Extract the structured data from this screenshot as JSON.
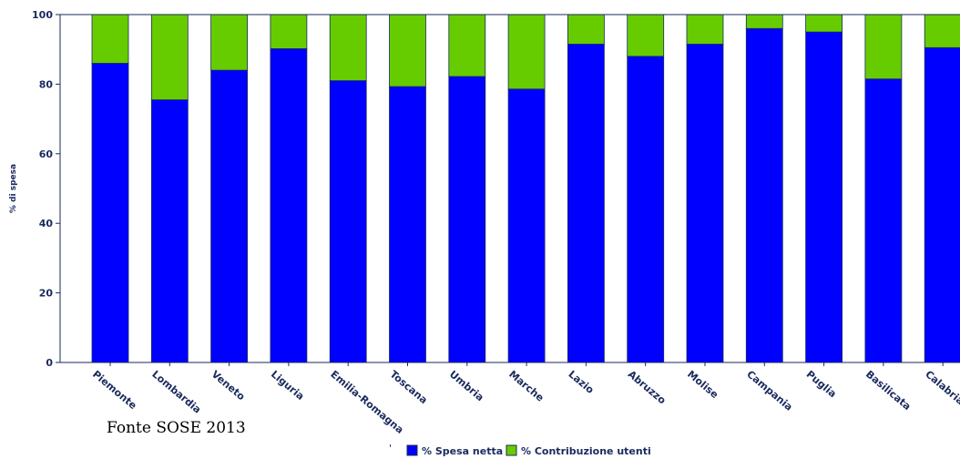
{
  "source_note": "Fonte SOSE 2013",
  "colors": {
    "spesa_netta": "#0000ff",
    "contribuzione_utenti": "#66cc00",
    "axis": "#1a2a5e"
  },
  "chart_data": {
    "type": "bar",
    "stacked": true,
    "categories": [
      "Piemonte",
      "Lombardia",
      "Veneto",
      "Liguria",
      "Emilia-Romagna",
      "Toscana",
      "Umbria",
      "Marche",
      "Lazio",
      "Abruzzo",
      "Molise",
      "Campania",
      "Puglia",
      "Basilicata",
      "Calabria"
    ],
    "series": [
      {
        "name": "% Spesa netta",
        "values": [
          86,
          75.5,
          84,
          90.2,
          81,
          79.3,
          82.2,
          78.6,
          91.5,
          88,
          91.5,
          96,
          95,
          81.5,
          90.5
        ]
      },
      {
        "name": "% Contribuzione utenti",
        "values": [
          14,
          24.5,
          16,
          9.8,
          19,
          20.7,
          17.8,
          21.4,
          8.5,
          12,
          8.5,
          4,
          5,
          18.5,
          9.5
        ]
      }
    ],
    "ylabel": "% di spesa",
    "xlabel": "",
    "ylim": [
      0,
      100
    ],
    "yticks": [
      0,
      20,
      40,
      60,
      80,
      100
    ],
    "grid": false,
    "legend": "bottom"
  }
}
